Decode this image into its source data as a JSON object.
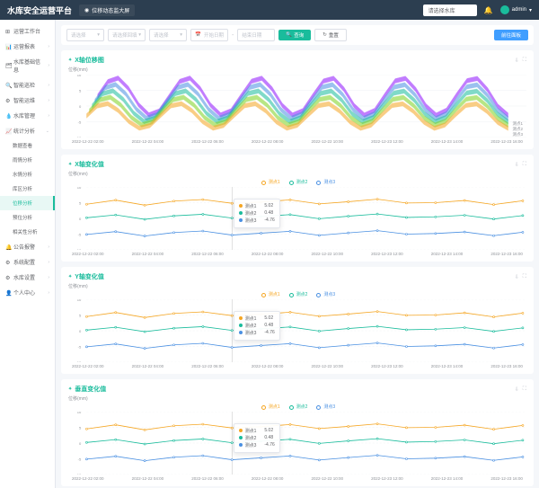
{
  "header": {
    "title": "水库安全运营平台",
    "breadcrumb_icon": "◉",
    "breadcrumb": "位移动态监大屏",
    "selector": "请选择水库",
    "user": "admin"
  },
  "sidebar": {
    "items": [
      {
        "label": "运营工作台",
        "icon": "⊞",
        "chev": ""
      },
      {
        "label": "运营报表",
        "icon": "📊",
        "chev": "›"
      },
      {
        "label": "水库基础信息",
        "icon": "🗂",
        "chev": "›"
      },
      {
        "label": "智能巡检",
        "icon": "🔍",
        "chev": "›"
      },
      {
        "label": "智能运维",
        "icon": "⚙",
        "chev": "›"
      },
      {
        "label": "水库管理",
        "icon": "💧",
        "chev": "›"
      },
      {
        "label": "统计分析",
        "icon": "📈",
        "chev": "⌄",
        "active_group": true
      },
      {
        "label": "数据查看",
        "sub": true
      },
      {
        "label": "雨情分析",
        "sub": true
      },
      {
        "label": "水情分析",
        "sub": true
      },
      {
        "label": "库区分析",
        "sub": true
      },
      {
        "label": "位移分析",
        "sub": true,
        "active": true
      },
      {
        "label": "预位分析",
        "sub": true
      },
      {
        "label": "相关性分析",
        "sub": true
      },
      {
        "label": "公告报警",
        "icon": "🔔",
        "chev": "›"
      },
      {
        "label": "系统配置",
        "icon": "⚙",
        "chev": "›"
      },
      {
        "label": "水库设置",
        "icon": "⚙",
        "chev": "›"
      },
      {
        "label": "个人中心",
        "icon": "👤",
        "chev": "›"
      }
    ]
  },
  "filters": {
    "f1": "请选择",
    "f2": "请选择回填",
    "f3": "请选择",
    "f4": "开始日期",
    "f5": "结束日期",
    "btn_query": "查询",
    "btn_reset": "重置",
    "btn_return": "前往面板"
  },
  "charts": {
    "colors": {
      "s1": "#f5a623",
      "s2": "#1abc9c",
      "s3": "#4a90e2",
      "grid": "#e4e7ed",
      "axis": "#909399"
    },
    "ylim": [
      -10,
      10
    ],
    "yticks": [
      10,
      5,
      0,
      -5,
      -10
    ],
    "xticks": [
      "2022-12-22 02:00",
      "2022-12-22 04:00",
      "2022-12-22 06:00",
      "2022-12-22 08:00",
      "2022-12-22 10:00",
      "2022-12-23 12:00",
      "2022-12-23 14:00",
      "2022-12-23 16:00"
    ],
    "series_labels": [
      "测点1",
      "测点2",
      "测点3"
    ],
    "tooltip": {
      "r1": {
        "name": "测点1",
        "val": "5.02"
      },
      "r2": {
        "name": "测点2",
        "val": "0.48"
      },
      "r3": {
        "name": "测点3",
        "val": "-4.76"
      }
    },
    "surface": {
      "title": "X轴位移图",
      "ylabel": "位移(mm)",
      "rlegend": [
        "测点1",
        "测点2",
        "测点3"
      ]
    },
    "c1": {
      "title": "X轴变化值",
      "ylabel": "位移(mm)"
    },
    "c2": {
      "title": "Y轴变化值",
      "ylabel": "位移(mm)"
    },
    "c3": {
      "title": "垂直变化值",
      "ylabel": "位移(mm)"
    },
    "line_data": {
      "s1": [
        4.5,
        5.8,
        4.2,
        5.5,
        6.0,
        4.8,
        5.2,
        5.9,
        4.6,
        5.3,
        6.1,
        4.9,
        5.0,
        5.7,
        4.4,
        5.6
      ],
      "s2": [
        0.2,
        1.1,
        -0.3,
        0.8,
        1.3,
        0.1,
        0.6,
        1.2,
        -0.1,
        0.7,
        1.4,
        0.3,
        0.5,
        1.0,
        -0.2,
        0.9
      ],
      "s3": [
        -5.1,
        -4.2,
        -5.6,
        -4.5,
        -4.0,
        -5.3,
        -4.7,
        -4.1,
        -5.4,
        -4.6,
        -3.9,
        -5.0,
        -4.8,
        -4.3,
        -5.5,
        -4.4
      ]
    }
  }
}
